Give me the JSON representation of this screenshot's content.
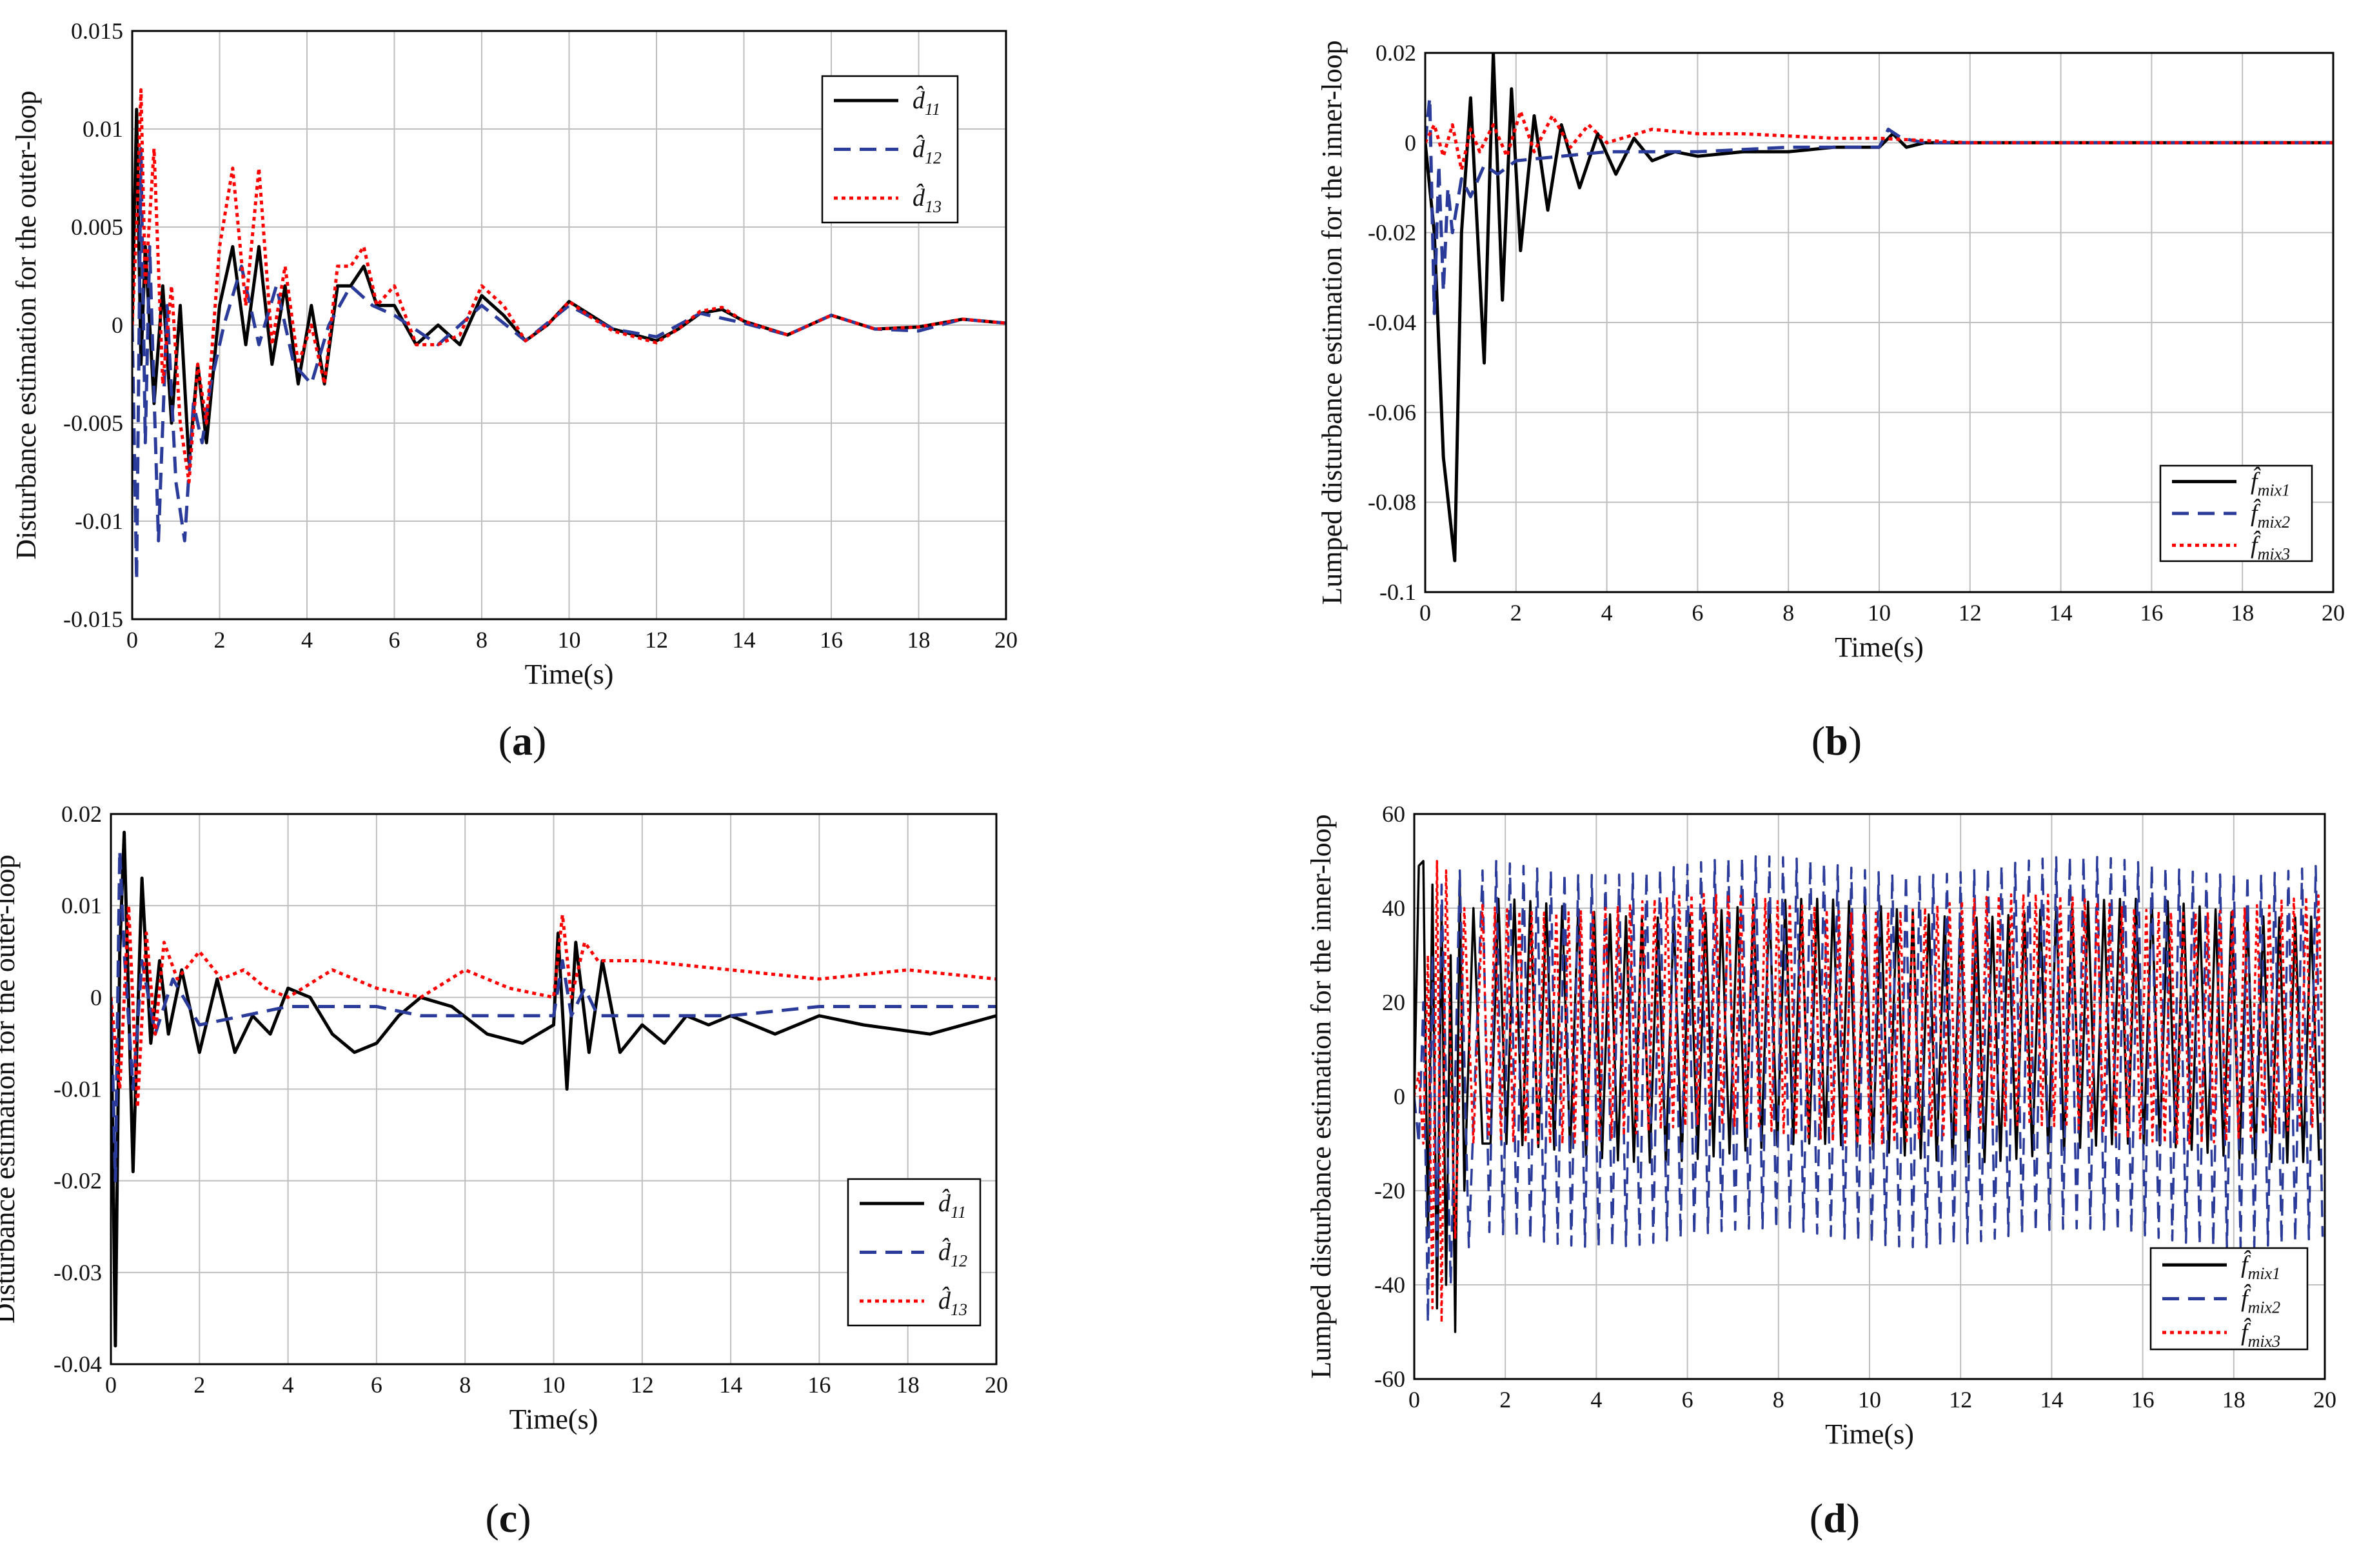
{
  "figure": {
    "panels": [
      "a",
      "b",
      "c",
      "d"
    ]
  },
  "chart_data": [
    {
      "id": "a",
      "type": "line",
      "caption": "(a)",
      "xlabel": "Time(s)",
      "ylabel": "Disturbance estimation for the outer-loop",
      "xlim": [
        0,
        20
      ],
      "ylim": [
        -0.015,
        0.015
      ],
      "xticks": [
        0,
        2,
        4,
        6,
        8,
        10,
        12,
        14,
        16,
        18,
        20
      ],
      "xtick_labels": [
        "0",
        "2",
        "4",
        "6",
        "8",
        "10",
        "12",
        "14",
        "16",
        "18",
        "20"
      ],
      "yticks": [
        -0.015,
        -0.01,
        -0.005,
        0,
        0.005,
        0.01,
        0.015
      ],
      "ytick_labels": [
        "-0.015",
        "-0.01",
        "-0.005",
        "0",
        "0.005",
        "0.01",
        "0.015"
      ],
      "grid": true,
      "legend_position": "top-right",
      "series": [
        {
          "name": "d̂",
          "sub": "11",
          "color": "#000000",
          "dash": "solid",
          "x": [
            0,
            0.1,
            0.2,
            0.3,
            0.5,
            0.7,
            0.9,
            1.1,
            1.3,
            1.5,
            1.7,
            2.0,
            2.3,
            2.6,
            2.9,
            3.2,
            3.5,
            3.8,
            4.1,
            4.4,
            4.7,
            5.0,
            5.3,
            5.6,
            6.0,
            6.5,
            7.0,
            7.5,
            8.0,
            8.5,
            9.0,
            9.5,
            10.0,
            10.5,
            11.0,
            11.5,
            12.0,
            12.5,
            13.0,
            13.5,
            14.0,
            15.0,
            16.0,
            17.0,
            18.0,
            19.0,
            20.0
          ],
          "y": [
            0,
            0.011,
            -0.002,
            0.004,
            -0.004,
            0.002,
            -0.005,
            0.001,
            -0.007,
            -0.002,
            -0.006,
            0.001,
            0.004,
            -0.001,
            0.004,
            -0.002,
            0.002,
            -0.003,
            0.001,
            -0.003,
            0.002,
            0.002,
            0.003,
            0.001,
            0.001,
            -0.001,
            0.0,
            -0.001,
            0.0015,
            0.0005,
            -0.0008,
            0.0,
            0.0012,
            0.0005,
            -0.0002,
            -0.0005,
            -0.0008,
            -0.0002,
            0.0006,
            0.0008,
            0.0002,
            -0.0005,
            0.0005,
            -0.0002,
            -0.0001,
            0.0003,
            0.0001
          ]
        },
        {
          "name": "d̂",
          "sub": "12",
          "color": "#2b3b9a",
          "dash": "dashed",
          "x": [
            0,
            0.1,
            0.2,
            0.3,
            0.4,
            0.6,
            0.8,
            1.0,
            1.2,
            1.4,
            1.6,
            1.8,
            2.1,
            2.5,
            2.9,
            3.3,
            3.7,
            4.1,
            4.5,
            5.0,
            5.5,
            6.0,
            7.0,
            8.0,
            9.0,
            10.0,
            11.0,
            12.0,
            13.0,
            14.0,
            15.0,
            16.0,
            17.0,
            18.0,
            19.0,
            20.0
          ],
          "y": [
            0,
            -0.013,
            0.009,
            -0.006,
            0.004,
            -0.011,
            0.001,
            -0.008,
            -0.011,
            -0.004,
            -0.006,
            -0.003,
            0.0,
            0.003,
            -0.001,
            0.002,
            -0.002,
            -0.003,
            0.0,
            0.002,
            0.001,
            0.0005,
            -0.001,
            0.001,
            -0.0008,
            0.001,
            -0.0002,
            -0.0006,
            0.0006,
            0.0001,
            -0.0005,
            0.0005,
            -0.0002,
            -0.0003,
            0.0003,
            0.0001
          ]
        },
        {
          "name": "d̂",
          "sub": "13",
          "color": "#ff0000",
          "dash": "dotted",
          "x": [
            0,
            0.1,
            0.2,
            0.3,
            0.5,
            0.7,
            0.9,
            1.1,
            1.3,
            1.5,
            1.7,
            2.0,
            2.3,
            2.6,
            2.9,
            3.2,
            3.5,
            3.8,
            4.1,
            4.4,
            4.7,
            5.0,
            5.3,
            5.6,
            6.0,
            6.5,
            7.0,
            7.5,
            8.0,
            8.5,
            9.0,
            9.5,
            10.0,
            10.5,
            11.0,
            11.5,
            12.0,
            12.5,
            13.0,
            13.5,
            14.0,
            15.0,
            16.0,
            17.0,
            18.0,
            19.0,
            20.0
          ],
          "y": [
            0,
            0.005,
            0.012,
            0.002,
            0.009,
            -0.003,
            0.002,
            -0.005,
            -0.008,
            -0.002,
            -0.005,
            0.004,
            0.008,
            0.001,
            0.008,
            -0.001,
            0.003,
            -0.002,
            0.0,
            -0.003,
            0.003,
            0.003,
            0.004,
            0.001,
            0.002,
            -0.001,
            -0.001,
            -0.0005,
            0.002,
            0.001,
            -0.0008,
            0.0,
            0.0012,
            0.0004,
            -0.0003,
            -0.0006,
            -0.0009,
            -0.0002,
            0.0007,
            0.0009,
            0.0002,
            -0.0005,
            0.0005,
            -0.0002,
            -0.0001,
            0.0003,
            0.0001
          ]
        }
      ]
    },
    {
      "id": "b",
      "type": "line",
      "caption": "(b)",
      "xlabel": "Time(s)",
      "ylabel": "Lumped disturbance estimation for the inner-loop",
      "xlim": [
        0,
        20
      ],
      "ylim": [
        -0.1,
        0.02
      ],
      "xticks": [
        0,
        2,
        4,
        6,
        8,
        10,
        12,
        14,
        16,
        18,
        20
      ],
      "xtick_labels": [
        "0",
        "2",
        "4",
        "6",
        "8",
        "10",
        "12",
        "14",
        "16",
        "18",
        "20"
      ],
      "yticks": [
        -0.1,
        -0.08,
        -0.06,
        -0.04,
        -0.02,
        0,
        0.02
      ],
      "ytick_labels": [
        "-0.1",
        "-0.08",
        "-0.06",
        "-0.04",
        "-0.02",
        "0",
        "0.02"
      ],
      "grid": true,
      "legend_position": "bottom-right",
      "series": [
        {
          "name": "f̂",
          "sub": "mix1",
          "color": "#000000",
          "dash": "solid",
          "x": [
            0,
            0.2,
            0.4,
            0.65,
            0.8,
            1.0,
            1.3,
            1.5,
            1.7,
            1.9,
            2.1,
            2.4,
            2.7,
            3.0,
            3.4,
            3.8,
            4.2,
            4.6,
            5.0,
            5.5,
            6.0,
            7.0,
            8.0,
            9.0,
            10.0,
            10.3,
            10.6,
            11.0,
            12.0,
            14.0,
            16.0,
            18.0,
            20.0
          ],
          "y": [
            0,
            -0.02,
            -0.07,
            -0.093,
            -0.02,
            0.01,
            -0.049,
            0.02,
            -0.035,
            0.012,
            -0.024,
            0.006,
            -0.015,
            0.004,
            -0.01,
            0.002,
            -0.007,
            0.001,
            -0.004,
            -0.002,
            -0.003,
            -0.002,
            -0.002,
            -0.001,
            -0.001,
            0.002,
            -0.001,
            0.0,
            0.0,
            0.0,
            0.0,
            0.0,
            0.0
          ]
        },
        {
          "name": "f̂",
          "sub": "mix2",
          "color": "#2b3b9a",
          "dash": "dashed",
          "x": [
            0,
            0.1,
            0.2,
            0.3,
            0.4,
            0.5,
            0.6,
            0.8,
            1.0,
            1.3,
            1.6,
            2.0,
            3.0,
            4.0,
            6.0,
            8.0,
            10.0,
            10.2,
            10.5,
            11.0,
            12.0,
            14.0,
            16.0,
            18.0,
            20.0
          ],
          "y": [
            0,
            0.01,
            -0.038,
            -0.005,
            -0.033,
            -0.01,
            -0.02,
            -0.008,
            -0.012,
            -0.005,
            -0.007,
            -0.004,
            -0.003,
            -0.002,
            -0.002,
            -0.001,
            -0.001,
            0.003,
            0.001,
            0.0,
            0.0,
            0.0,
            0.0,
            0.0,
            0.0
          ]
        },
        {
          "name": "f̂",
          "sub": "mix3",
          "color": "#ff0000",
          "dash": "dotted",
          "x": [
            0,
            0.2,
            0.4,
            0.6,
            0.8,
            1.0,
            1.2,
            1.5,
            1.8,
            2.1,
            2.4,
            2.8,
            3.2,
            3.6,
            4.0,
            5.0,
            6.0,
            7.0,
            8.0,
            9.0,
            10.0,
            11.0,
            12.0,
            14.0,
            16.0,
            18.0,
            20.0
          ],
          "y": [
            0,
            0.004,
            -0.003,
            0.004,
            -0.006,
            0.003,
            -0.002,
            0.004,
            -0.003,
            0.007,
            -0.002,
            0.006,
            -0.001,
            0.004,
            0.0,
            0.003,
            0.002,
            0.002,
            0.0015,
            0.001,
            0.001,
            0.0005,
            0.0,
            0.0,
            0.0,
            0.0,
            0.0
          ]
        }
      ]
    },
    {
      "id": "c",
      "type": "line",
      "caption": "(c)",
      "xlabel": "Time(s)",
      "ylabel": "Disturbance estimation for the outer-loop",
      "xlim": [
        0,
        20
      ],
      "ylim": [
        -0.04,
        0.02
      ],
      "xticks": [
        0,
        2,
        4,
        6,
        8,
        10,
        12,
        14,
        16,
        18,
        20
      ],
      "xtick_labels": [
        "0",
        "2",
        "4",
        "6",
        "8",
        "10",
        "12",
        "14",
        "16",
        "18",
        "20"
      ],
      "yticks": [
        -0.04,
        -0.03,
        -0.02,
        -0.01,
        0,
        0.01,
        0.02
      ],
      "ytick_labels": [
        "-0.04",
        "-0.03",
        "-0.02",
        "-0.01",
        "0",
        "0.01",
        "0.02"
      ],
      "grid": true,
      "legend_position": "bottom-right",
      "series": [
        {
          "name": "d̂",
          "sub": "11",
          "color": "#000000",
          "dash": "solid",
          "x": [
            0,
            0.1,
            0.2,
            0.3,
            0.5,
            0.7,
            0.9,
            1.1,
            1.3,
            1.6,
            2.0,
            2.4,
            2.8,
            3.2,
            3.6,
            4.0,
            4.5,
            5.0,
            5.5,
            6.0,
            6.5,
            7.0,
            7.7,
            8.5,
            9.3,
            10.0,
            10.1,
            10.3,
            10.5,
            10.8,
            11.1,
            11.5,
            12.0,
            12.5,
            13.0,
            13.5,
            14.0,
            15.0,
            16.0,
            17.0,
            18.5,
            20.0
          ],
          "y": [
            0,
            -0.038,
            0.005,
            0.018,
            -0.019,
            0.013,
            -0.005,
            0.004,
            -0.004,
            0.003,
            -0.006,
            0.002,
            -0.006,
            -0.002,
            -0.004,
            0.001,
            0.0,
            -0.004,
            -0.006,
            -0.005,
            -0.002,
            0.0,
            -0.001,
            -0.004,
            -0.005,
            -0.003,
            0.007,
            -0.01,
            0.006,
            -0.006,
            0.004,
            -0.006,
            -0.003,
            -0.005,
            -0.002,
            -0.003,
            -0.002,
            -0.004,
            -0.002,
            -0.003,
            -0.004,
            -0.002
          ]
        },
        {
          "name": "d̂",
          "sub": "12",
          "color": "#2b3b9a",
          "dash": "dashed",
          "x": [
            0,
            0.1,
            0.2,
            0.3,
            0.5,
            0.7,
            1.0,
            1.4,
            2.0,
            3.0,
            4.0,
            5.0,
            6.0,
            7.0,
            8.0,
            9.0,
            10.0,
            10.2,
            10.4,
            10.7,
            11.0,
            12.0,
            14.0,
            16.0,
            18.0,
            20.0
          ],
          "y": [
            0,
            -0.02,
            0.016,
            0.005,
            -0.01,
            0.004,
            -0.004,
            0.002,
            -0.003,
            -0.002,
            -0.001,
            -0.001,
            -0.001,
            -0.002,
            -0.002,
            -0.002,
            -0.002,
            0.004,
            -0.002,
            0.001,
            -0.002,
            -0.002,
            -0.002,
            -0.001,
            -0.001,
            -0.001
          ]
        },
        {
          "name": "d̂",
          "sub": "13",
          "color": "#ff0000",
          "dash": "dotted",
          "x": [
            0,
            0.2,
            0.4,
            0.6,
            0.8,
            1.0,
            1.2,
            1.5,
            2.0,
            2.5,
            3.0,
            3.5,
            4.0,
            5.0,
            6.0,
            7.0,
            8.0,
            9.0,
            10.0,
            10.2,
            10.4,
            10.7,
            11.0,
            12.0,
            14.0,
            16.0,
            18.0,
            20.0
          ],
          "y": [
            0,
            -0.01,
            0.01,
            -0.012,
            0.007,
            -0.004,
            0.006,
            0.002,
            0.005,
            0.002,
            0.003,
            0.001,
            0.0,
            0.003,
            0.001,
            0.0,
            0.003,
            0.001,
            0.0,
            0.009,
            0.0,
            0.006,
            0.004,
            0.004,
            0.003,
            0.002,
            0.003,
            0.002
          ]
        }
      ]
    },
    {
      "id": "d",
      "type": "line",
      "caption": "(d)",
      "xlabel": "Time(s)",
      "ylabel": "Lumped disturbance estimation for the inner-loop",
      "xlim": [
        0,
        20
      ],
      "ylim": [
        -60,
        60
      ],
      "xticks": [
        0,
        2,
        4,
        6,
        8,
        10,
        12,
        14,
        16,
        18,
        20
      ],
      "xtick_labels": [
        "0",
        "2",
        "4",
        "6",
        "8",
        "10",
        "12",
        "14",
        "16",
        "18",
        "20"
      ],
      "yticks": [
        -60,
        -40,
        -20,
        0,
        20,
        40,
        60
      ],
      "ytick_labels": [
        "-60",
        "-40",
        "-20",
        "0",
        "20",
        "40",
        "60"
      ],
      "grid": true,
      "legend_position": "bottom-right",
      "series": [
        {
          "name": "f̂",
          "sub": "mix1",
          "color": "#000000",
          "dash": "solid",
          "band": {
            "start": 1.5,
            "end": 20,
            "low": -12,
            "high": 40,
            "period": 0.35
          },
          "x": [
            0,
            0.1,
            0.2,
            0.3,
            0.4,
            0.5,
            0.6,
            0.7,
            0.8,
            0.9,
            1.0,
            1.1,
            1.3,
            1.5
          ],
          "y": [
            0,
            49,
            50,
            -30,
            45,
            -45,
            40,
            -40,
            30,
            -50,
            45,
            -20,
            40,
            -10
          ]
        },
        {
          "name": "f̂",
          "sub": "mix2",
          "color": "#2b3b9a",
          "dash": "dashed",
          "band": {
            "start": 1.5,
            "end": 20,
            "low": -30,
            "high": 49,
            "period": 0.3
          },
          "x": [
            0,
            0.1,
            0.2,
            0.3,
            0.4,
            0.5,
            0.6,
            0.8,
            1.0,
            1.2,
            1.5
          ],
          "y": [
            0,
            -10,
            20,
            -48,
            30,
            -35,
            45,
            -40,
            48,
            -32,
            48
          ]
        },
        {
          "name": "f̂",
          "sub": "mix3",
          "color": "#ff0000",
          "dash": "dotted",
          "band": {
            "start": 1.5,
            "end": 20,
            "low": -8,
            "high": 41,
            "period": 0.27
          },
          "x": [
            0,
            0.1,
            0.2,
            0.3,
            0.4,
            0.5,
            0.6,
            0.7,
            0.9,
            1.1,
            1.3,
            1.5
          ],
          "y": [
            0,
            5,
            -10,
            30,
            -45,
            50,
            -48,
            48,
            -30,
            40,
            -10,
            41
          ]
        }
      ]
    }
  ]
}
